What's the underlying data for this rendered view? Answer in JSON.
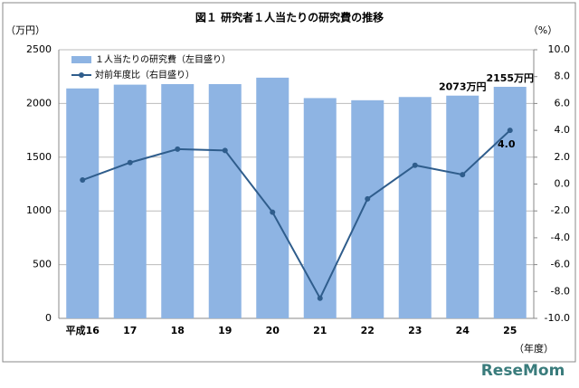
{
  "chart_data": {
    "type": "bar-line",
    "title": "図１ 研究者１人当たりの研究費の推移",
    "y_unit": "（万円）",
    "y2_unit": "（%）",
    "x_unit": "（年度）",
    "categories": [
      "平成16",
      "17",
      "18",
      "19",
      "20",
      "21",
      "22",
      "23",
      "24",
      "25"
    ],
    "series": [
      {
        "name": "１人当たりの研究費（左目盛り）",
        "type": "bar",
        "color": "#8eb4e3",
        "values": [
          2140,
          2175,
          2215,
          2290,
          2240,
          2050,
          2030,
          2060,
          2073,
          2155
        ],
        "value_labels": [
          null,
          null,
          null,
          null,
          null,
          null,
          null,
          null,
          "2073万円",
          "2155万円"
        ]
      },
      {
        "name": "対前年度比（右目盛り）",
        "type": "line",
        "axis": "y2",
        "color": "#2f5d8c",
        "values": [
          0.3,
          1.6,
          2.6,
          2.5,
          -2.1,
          -8.5,
          -1.1,
          1.4,
          0.7,
          4.0
        ],
        "value_labels": [
          null,
          null,
          null,
          null,
          null,
          null,
          null,
          null,
          null,
          "4.0"
        ]
      }
    ],
    "ylim": [
      0,
      2500
    ],
    "yticks": [
      0,
      500,
      1000,
      1500,
      2000,
      2500
    ],
    "y2lim": [
      -10,
      10
    ],
    "y2ticks": [
      {
        "value": -10,
        "label": "-10.0"
      },
      {
        "value": -8,
        "label": "-8.0"
      },
      {
        "value": -6,
        "label": "-6.0"
      },
      {
        "value": -4,
        "label": "-4.0"
      },
      {
        "value": -2,
        "label": "-2.0"
      },
      {
        "value": 0,
        "label": "0.0"
      },
      {
        "value": 2,
        "label": "2.0"
      },
      {
        "value": 4,
        "label": "4.0"
      },
      {
        "value": 6,
        "label": "6.0"
      },
      {
        "value": 8,
        "label": "8.0"
      },
      {
        "value": 10,
        "label": "10.0"
      }
    ],
    "grid": true,
    "legend": "top-left",
    "watermark": "ReseMom"
  }
}
